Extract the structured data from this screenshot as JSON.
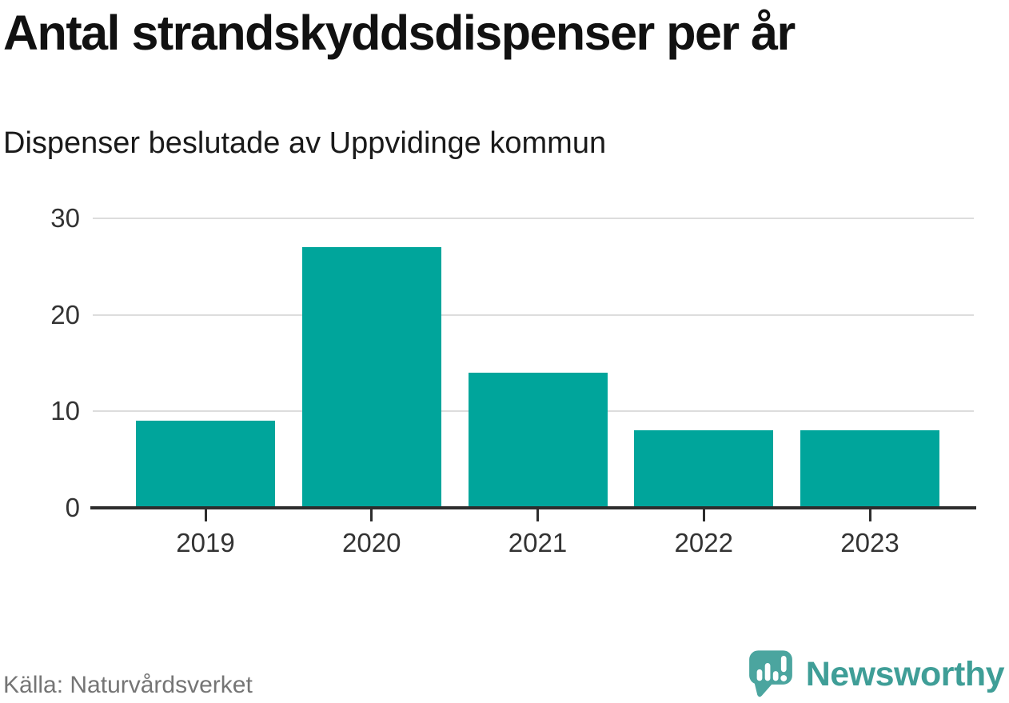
{
  "title": "Antal strandskyddsdispenser per år",
  "subtitle": "Dispenser beslutade av Uppvidinge kommun",
  "source": "Källa: Naturvårdsverket",
  "brand": {
    "name": "Newsworthy",
    "icon": "bar-chart-speech-bubble-icon",
    "mark_color": "#4ba59f",
    "text_color": "#3f9e97"
  },
  "chart_data": {
    "type": "bar",
    "title": "Antal strandskyddsdispenser per år",
    "subtitle": "Dispenser beslutade av Uppvidinge kommun",
    "categories": [
      "2019",
      "2020",
      "2021",
      "2022",
      "2023"
    ],
    "values": [
      9,
      27,
      14,
      8,
      8
    ],
    "xlabel": "",
    "ylabel": "",
    "ylim": [
      0,
      30
    ],
    "yticks": [
      0,
      10,
      20,
      30
    ],
    "grid": true,
    "legend": false,
    "bar_color": "#00a59b",
    "axis_color": "#2d2d2d",
    "gridline_color": "#dddddd",
    "tick_label_color": "#333333"
  }
}
